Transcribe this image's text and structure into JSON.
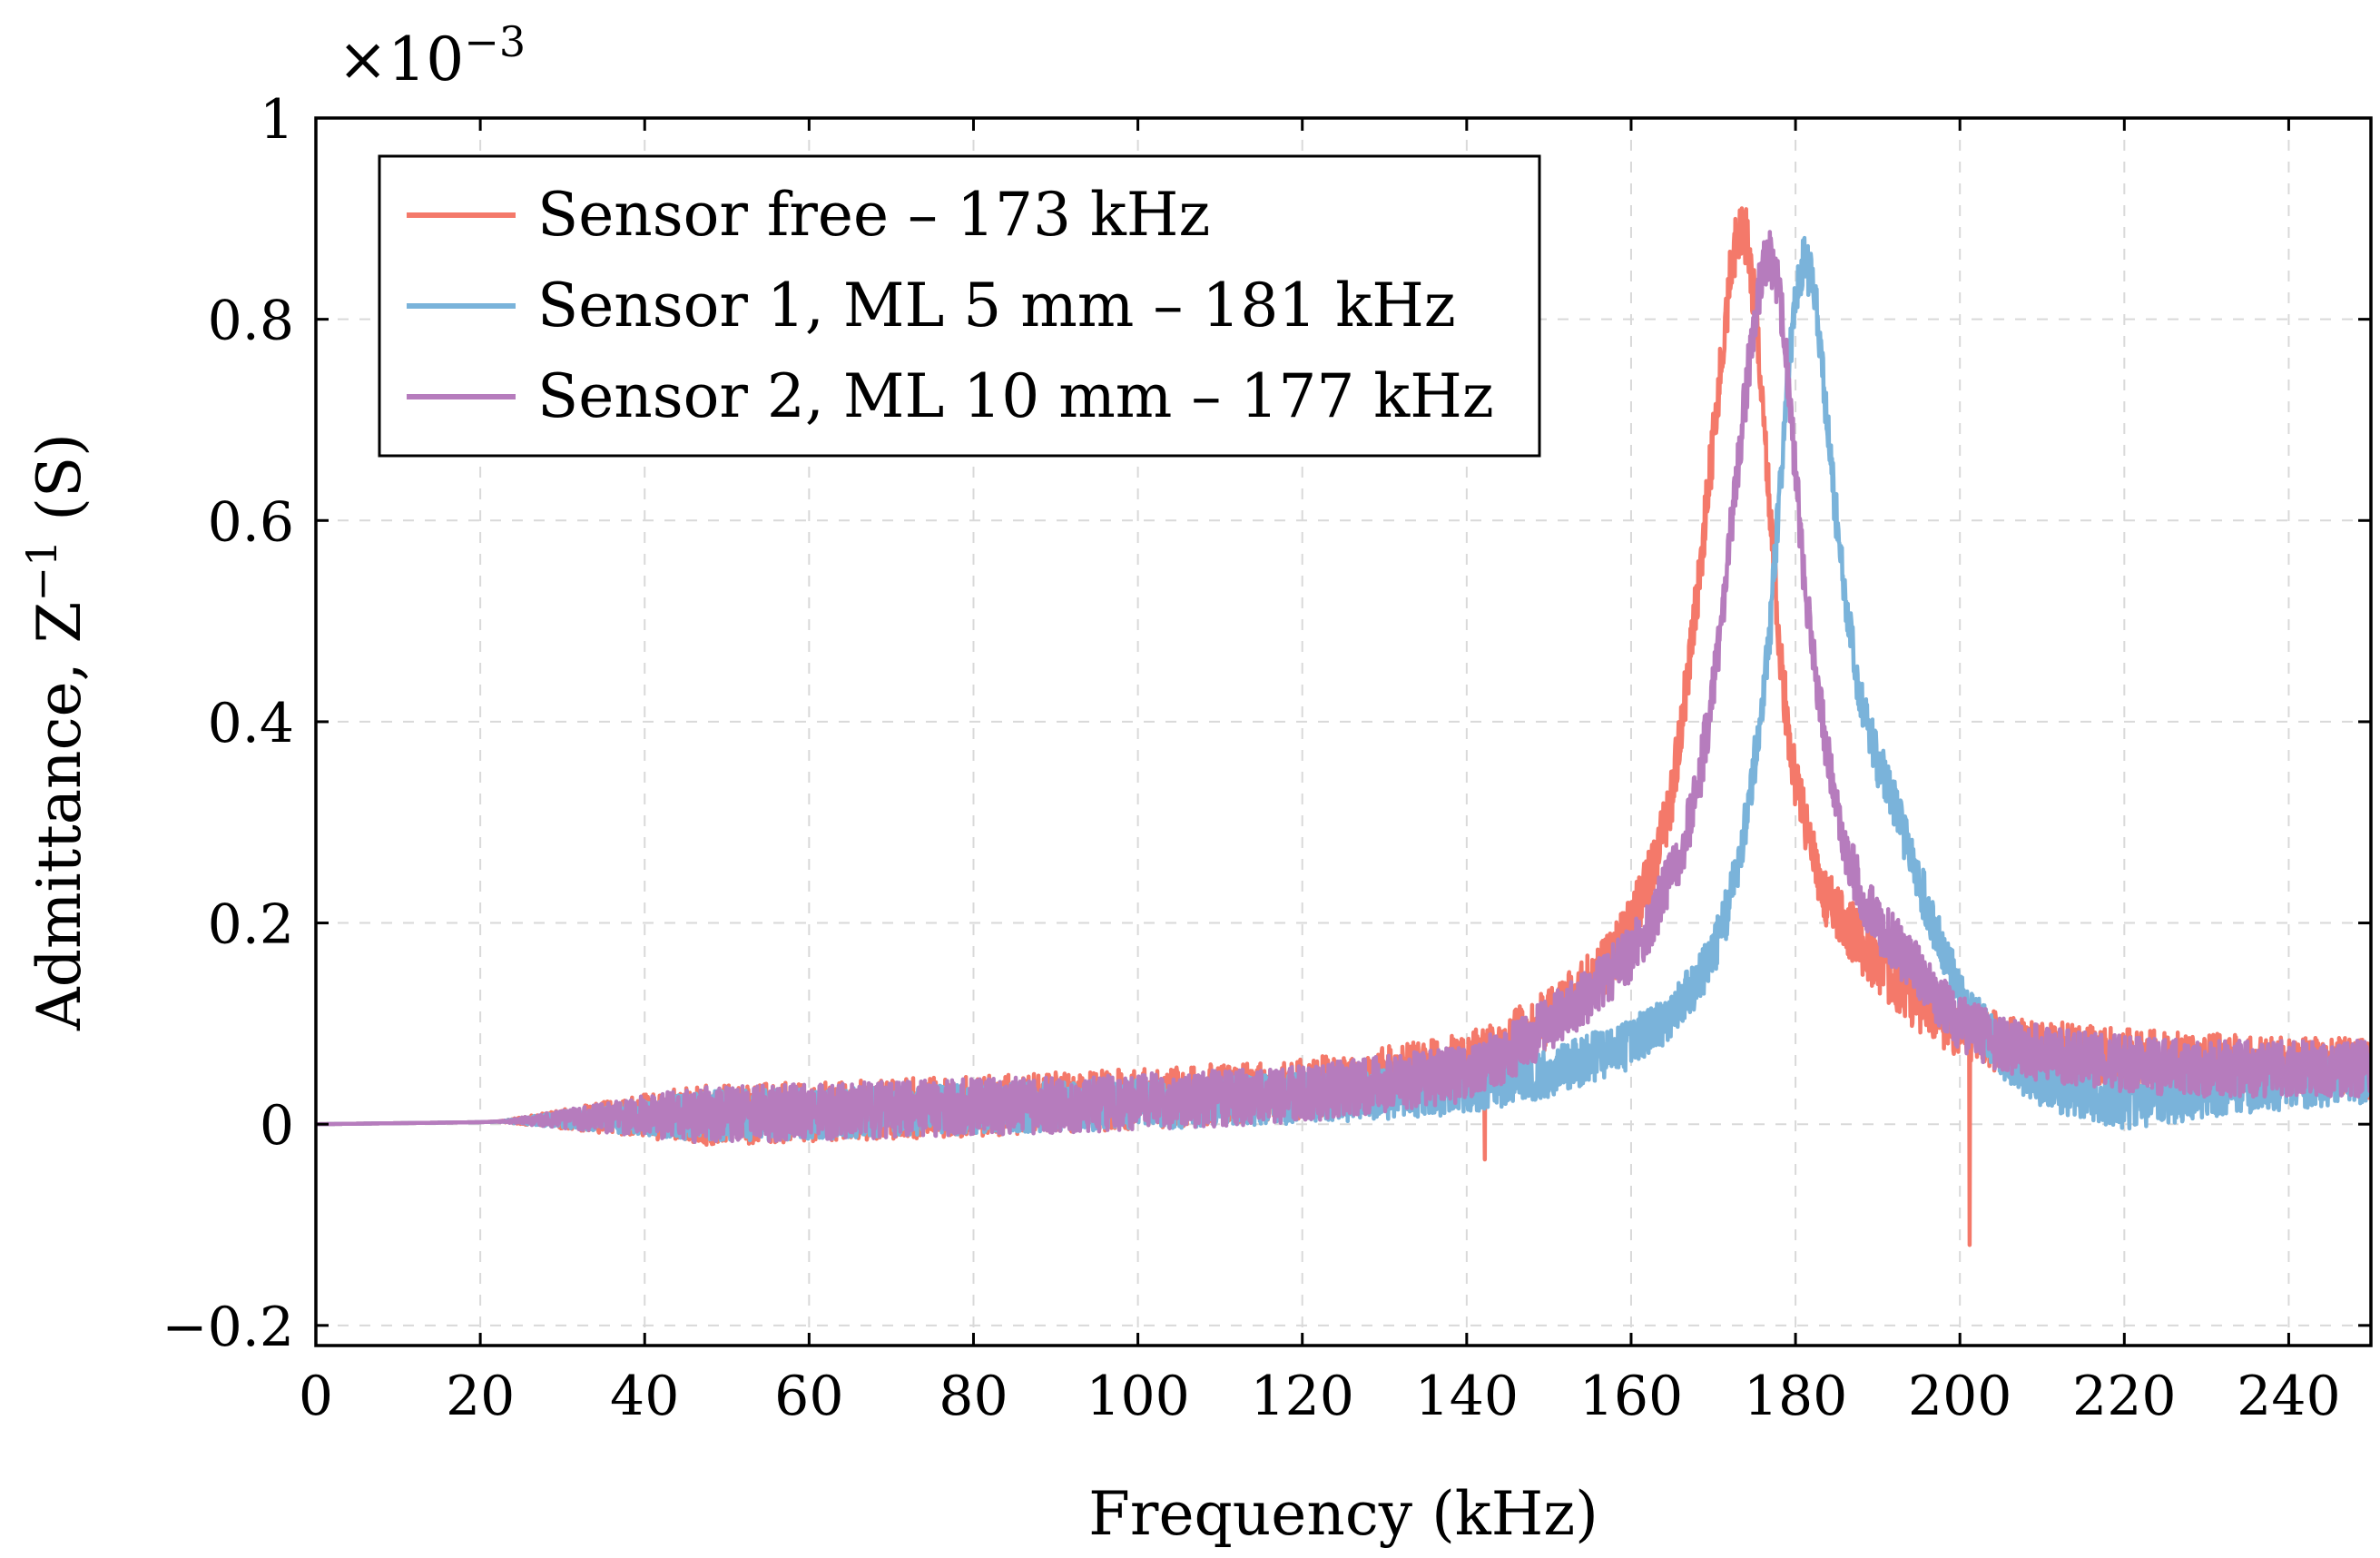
{
  "chart_data": {
    "type": "line",
    "title": "",
    "xlabel": "Frequency (kHz)",
    "ylabel_text": "Admittance, Z",
    "ylabel_exp": "−1",
    "ylabel_unit": "(S)",
    "y_scale_prefix": "×10",
    "y_scale_exp": "−3",
    "xlim": [
      0,
      250
    ],
    "ylim": [
      -0.22,
      1.0
    ],
    "xticks": [
      0,
      20,
      40,
      60,
      80,
      100,
      120,
      140,
      160,
      180,
      200,
      220,
      240
    ],
    "xtick_labels": [
      "0",
      "20",
      "40",
      "60",
      "80",
      "100",
      "120",
      "140",
      "160",
      "180",
      "200",
      "220",
      "240"
    ],
    "yticks": [
      -0.2,
      0,
      0.2,
      0.4,
      0.6,
      0.8,
      1
    ],
    "ytick_labels": [
      "−0.2",
      "0",
      "0.2",
      "0.4",
      "0.6",
      "0.8",
      "1"
    ],
    "grid": true,
    "legend_position": "top-left",
    "series": [
      {
        "name": "Sensor free – 173 kHz",
        "color": "#f4796a",
        "x": [
          0,
          20,
          40,
          60,
          80,
          100,
          120,
          140,
          145,
          150,
          155,
          158,
          160,
          163,
          165,
          167,
          169,
          171,
          172,
          173,
          174,
          175,
          176,
          177,
          178,
          179,
          180,
          182,
          184,
          186,
          188,
          190,
          195,
          200,
          205,
          210,
          220,
          230,
          240,
          250
        ],
        "y": [
          0,
          0.002,
          0.008,
          0.012,
          0.018,
          0.025,
          0.035,
          0.06,
          0.08,
          0.105,
          0.14,
          0.17,
          0.2,
          0.26,
          0.33,
          0.45,
          0.6,
          0.76,
          0.84,
          0.89,
          0.88,
          0.82,
          0.72,
          0.6,
          0.48,
          0.4,
          0.34,
          0.27,
          0.22,
          0.2,
          0.18,
          0.16,
          0.12,
          0.095,
          0.08,
          0.075,
          0.065,
          0.06,
          0.058,
          0.055
        ],
        "noise": 0.03
      },
      {
        "name": "Sensor 1, ML 5 mm – 181 kHz",
        "color": "#7ab3da",
        "x": [
          0,
          20,
          40,
          60,
          80,
          100,
          120,
          140,
          150,
          160,
          165,
          168,
          170,
          172,
          174,
          176,
          177,
          178,
          179,
          180,
          181,
          182,
          183,
          184,
          186,
          188,
          190,
          192,
          195,
          200,
          205,
          210,
          220,
          230,
          240,
          250
        ],
        "y": [
          0,
          0.002,
          0.007,
          0.01,
          0.015,
          0.02,
          0.025,
          0.035,
          0.05,
          0.08,
          0.11,
          0.14,
          0.17,
          0.22,
          0.3,
          0.42,
          0.5,
          0.62,
          0.74,
          0.82,
          0.86,
          0.84,
          0.78,
          0.68,
          0.52,
          0.42,
          0.36,
          0.32,
          0.24,
          0.13,
          0.07,
          0.04,
          0.02,
          0.03,
          0.04,
          0.045
        ],
        "noise": 0.025
      },
      {
        "name": "Sensor 2, ML 10 mm – 177 kHz",
        "color": "#b67cbd",
        "x": [
          0,
          20,
          40,
          60,
          80,
          100,
          120,
          140,
          145,
          150,
          155,
          160,
          163,
          166,
          168,
          170,
          172,
          174,
          175,
          176,
          177,
          178,
          179,
          180,
          181,
          182,
          184,
          186,
          188,
          190,
          195,
          200,
          205,
          210,
          220,
          230,
          240,
          250
        ],
        "y": [
          0,
          0.002,
          0.008,
          0.012,
          0.017,
          0.022,
          0.03,
          0.05,
          0.07,
          0.1,
          0.13,
          0.17,
          0.21,
          0.27,
          0.33,
          0.43,
          0.58,
          0.73,
          0.8,
          0.85,
          0.86,
          0.83,
          0.75,
          0.65,
          0.55,
          0.47,
          0.36,
          0.28,
          0.23,
          0.2,
          0.15,
          0.1,
          0.08,
          0.07,
          0.06,
          0.055,
          0.055,
          0.055
        ],
        "noise": 0.028
      }
    ]
  }
}
